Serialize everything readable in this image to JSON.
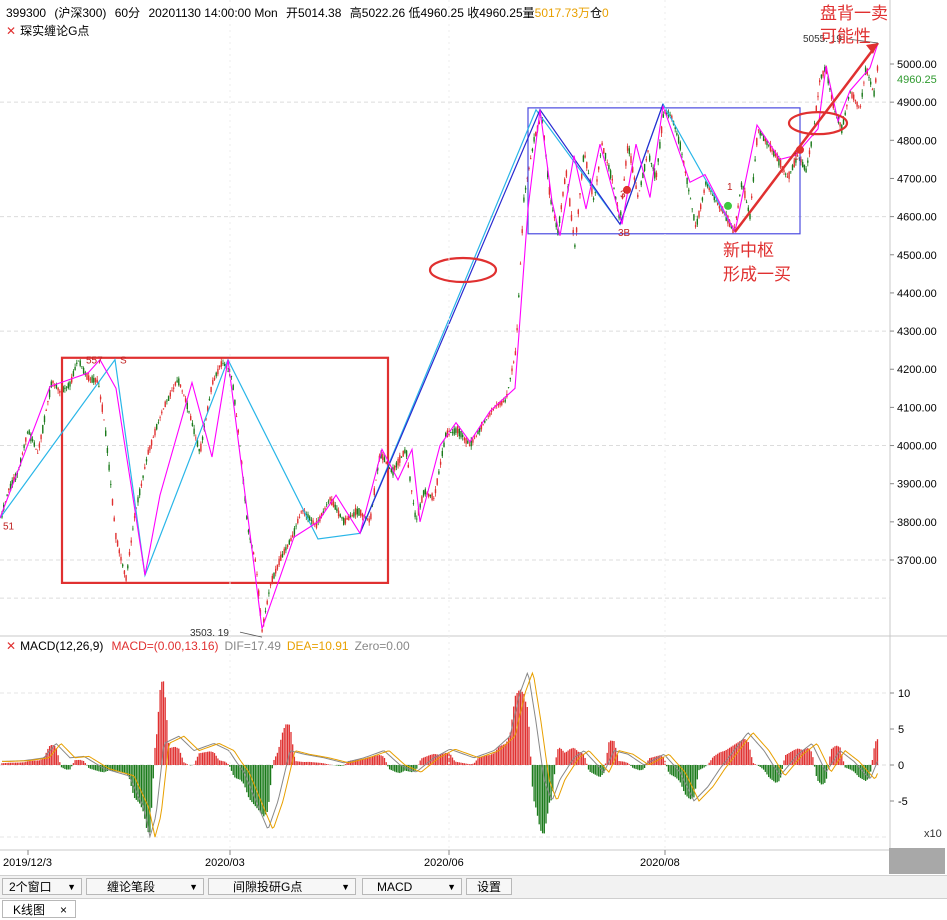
{
  "header": {
    "code": "399300",
    "name": "(沪深300)",
    "period": "60分",
    "datetime": "20201130 14:00:00 Mon",
    "open": "开5014.38",
    "high": "高5022.26",
    "low": "低4960.25",
    "close": "收4960.25",
    "volume_label": "量",
    "volume_value": "5017.73万",
    "hold_label": "仓",
    "hold_value": "0"
  },
  "indicator": {
    "name": "琛实缠论G点"
  },
  "price_axis": {
    "ticks": [
      "5000.00",
      "4900.00",
      "4800.00",
      "4700.00",
      "4600.00",
      "4500.00",
      "4400.00",
      "4300.00",
      "4200.00",
      "4100.00",
      "4000.00",
      "3900.00",
      "3800.00",
      "3700.00"
    ],
    "tick_values": [
      5000,
      4900,
      4800,
      4700,
      4600,
      4500,
      4400,
      4300,
      4200,
      4100,
      4000,
      3900,
      3800,
      3700
    ],
    "current": "4960.25"
  },
  "time_axis": {
    "labels": [
      "2019/12/3",
      "2020/03",
      "2020/06",
      "2020/08"
    ]
  },
  "macd": {
    "name": "MACD(12,26,9)",
    "macd_text": "MACD=(0.00,13.16)",
    "dif_text": "DIF=17.49",
    "dea_text": "DEA=10.91",
    "zero_text": "Zero=0.00",
    "ticks": [
      "10",
      "5",
      "0",
      "-5"
    ],
    "multiplier": "x10"
  },
  "chart_data": {
    "type": "candlestick",
    "colors": {
      "up": "#e03030",
      "down": "#1a7a1a",
      "stroke": "#ff00ff",
      "segment_light": "#29b6e8",
      "segment_dark": "#2a2ad0",
      "zhongshu": "#e03030",
      "zhongshu2": "#4b4be0",
      "annotation": "#e03030",
      "dif": "#888888",
      "dea": "#e8a000"
    },
    "price_range": [
      3540,
      5080
    ],
    "anchors": [
      [
        0,
        3800
      ],
      [
        8,
        3880
      ],
      [
        18,
        3930
      ],
      [
        28,
        4040
      ],
      [
        38,
        3980
      ],
      [
        52,
        4170
      ],
      [
        60,
        4140
      ],
      [
        70,
        4160
      ],
      [
        78,
        4225
      ],
      [
        88,
        4175
      ],
      [
        98,
        4170
      ],
      [
        105,
        4050
      ],
      [
        116,
        3760
      ],
      [
        126,
        3650
      ],
      [
        135,
        3820
      ],
      [
        148,
        3980
      ],
      [
        162,
        4090
      ],
      [
        178,
        4175
      ],
      [
        188,
        4100
      ],
      [
        200,
        3980
      ],
      [
        212,
        4160
      ],
      [
        222,
        4220
      ],
      [
        232,
        4180
      ],
      [
        240,
        4000
      ],
      [
        248,
        3780
      ],
      [
        256,
        3690
      ],
      [
        262,
        3515
      ],
      [
        270,
        3630
      ],
      [
        280,
        3700
      ],
      [
        292,
        3760
      ],
      [
        302,
        3830
      ],
      [
        316,
        3790
      ],
      [
        330,
        3860
      ],
      [
        344,
        3800
      ],
      [
        358,
        3830
      ],
      [
        370,
        3800
      ],
      [
        380,
        3980
      ],
      [
        392,
        3930
      ],
      [
        406,
        3990
      ],
      [
        416,
        3800
      ],
      [
        424,
        3880
      ],
      [
        434,
        3860
      ],
      [
        446,
        4030
      ],
      [
        458,
        4040
      ],
      [
        470,
        4000
      ],
      [
        482,
        4050
      ],
      [
        494,
        4100
      ],
      [
        506,
        4120
      ],
      [
        516,
        4250
      ],
      [
        524,
        4650
      ],
      [
        534,
        4800
      ],
      [
        542,
        4870
      ],
      [
        550,
        4650
      ],
      [
        558,
        4560
      ],
      [
        566,
        4720
      ],
      [
        575,
        4520
      ],
      [
        584,
        4770
      ],
      [
        594,
        4640
      ],
      [
        602,
        4790
      ],
      [
        612,
        4700
      ],
      [
        620,
        4590
      ],
      [
        628,
        4790
      ],
      [
        638,
        4650
      ],
      [
        648,
        4770
      ],
      [
        656,
        4700
      ],
      [
        664,
        4880
      ],
      [
        672,
        4860
      ],
      [
        680,
        4790
      ],
      [
        688,
        4680
      ],
      [
        696,
        4570
      ],
      [
        706,
        4690
      ],
      [
        716,
        4640
      ],
      [
        726,
        4600
      ],
      [
        734,
        4560
      ],
      [
        742,
        4690
      ],
      [
        750,
        4600
      ],
      [
        758,
        4830
      ],
      [
        768,
        4790
      ],
      [
        778,
        4750
      ],
      [
        788,
        4700
      ],
      [
        798,
        4760
      ],
      [
        806,
        4720
      ],
      [
        814,
        4830
      ],
      [
        820,
        4960
      ],
      [
        826,
        4990
      ],
      [
        834,
        4880
      ],
      [
        842,
        4830
      ],
      [
        850,
        4930
      ],
      [
        860,
        4880
      ],
      [
        866,
        4990
      ],
      [
        874,
        4920
      ],
      [
        878,
        5000
      ]
    ],
    "strokes": [
      [
        0,
        3810
      ],
      [
        50,
        4155
      ],
      [
        88,
        4190
      ],
      [
        100,
        4225
      ],
      [
        116,
        4150
      ],
      [
        145,
        3660
      ],
      [
        160,
        3870
      ],
      [
        192,
        4165
      ],
      [
        212,
        3970
      ],
      [
        228,
        4225
      ],
      [
        262,
        3520
      ],
      [
        294,
        3760
      ],
      [
        318,
        3800
      ],
      [
        336,
        3870
      ],
      [
        360,
        3770
      ],
      [
        382,
        3990
      ],
      [
        398,
        3910
      ],
      [
        412,
        3990
      ],
      [
        420,
        3800
      ],
      [
        440,
        4000
      ],
      [
        456,
        4060
      ],
      [
        470,
        4010
      ],
      [
        490,
        4090
      ],
      [
        515,
        4150
      ],
      [
        528,
        4620
      ],
      [
        540,
        4880
      ],
      [
        552,
        4640
      ],
      [
        560,
        4550
      ],
      [
        574,
        4760
      ],
      [
        586,
        4620
      ],
      [
        600,
        4790
      ],
      [
        622,
        4580
      ],
      [
        636,
        4790
      ],
      [
        650,
        4650
      ],
      [
        663,
        4890
      ],
      [
        690,
        4690
      ],
      [
        705,
        4710
      ],
      [
        735,
        4560
      ],
      [
        757,
        4840
      ],
      [
        780,
        4750
      ],
      [
        795,
        4760
      ],
      [
        818,
        4830
      ],
      [
        826,
        4995
      ],
      [
        838,
        4850
      ],
      [
        850,
        4930
      ],
      [
        870,
        4990
      ],
      [
        878,
        5055
      ]
    ],
    "segments_light": [
      [
        0,
        3810
      ],
      [
        115,
        4225
      ],
      [
        145,
        3660
      ],
      [
        228,
        4225
      ],
      [
        318,
        3755
      ],
      [
        360,
        3770
      ],
      [
        536,
        4880
      ],
      [
        620,
        4580
      ],
      [
        663,
        4895
      ],
      [
        735,
        4560
      ]
    ],
    "segments_dark": [
      [
        360,
        3770
      ],
      [
        540,
        4880
      ],
      [
        620,
        4580
      ],
      [
        663,
        4895
      ]
    ],
    "zhongshu_boxes": [
      {
        "x1": 62,
        "x2": 388,
        "top": 4230,
        "bottom": 3640
      },
      {
        "x1": 528,
        "x2": 800,
        "top": 4885,
        "bottom": 4555,
        "dark": true
      }
    ],
    "labels": [
      {
        "text": "557",
        "x": 86,
        "v": 4225
      },
      {
        "text": "S",
        "x": 120,
        "v": 4225
      },
      {
        "text": "51",
        "x": 3,
        "v": 3790
      },
      {
        "text": "3B",
        "x": 618,
        "v": 4560
      },
      {
        "text": "3",
        "x": 620,
        "v": 4660
      },
      {
        "text": "1",
        "x": 727,
        "v": 4680
      },
      {
        "text": "1",
        "x": 793,
        "v": 4760
      }
    ],
    "markers": [
      {
        "x": 627,
        "v": 4670,
        "color": "#e03030"
      },
      {
        "x": 728,
        "v": 4628,
        "color": "#3ec83e"
      },
      {
        "x": 800,
        "v": 4775,
        "color": "#e03030"
      }
    ],
    "low_label": {
      "text": "3503. 19",
      "x": 262,
      "v": 3503
    },
    "high_label": {
      "text": "5055. 19",
      "x": 878,
      "v": 5055
    },
    "trend_line": [
      [
        735,
        4560
      ],
      [
        878,
        5055
      ]
    ],
    "ellipses": [
      {
        "cx": 463,
        "v": 4460,
        "rx": 33,
        "ry": 12
      },
      {
        "cx": 818,
        "v": 4845,
        "rx": 29,
        "ry": 11
      }
    ],
    "macd_range": [
      -10,
      14
    ],
    "macd_anchors": [
      [
        0,
        0.5
      ],
      [
        20,
        0.6
      ],
      [
        40,
        1
      ],
      [
        52,
        3
      ],
      [
        66,
        1
      ],
      [
        80,
        1.2
      ],
      [
        100,
        -0.5
      ],
      [
        125,
        -1.5
      ],
      [
        140,
        -6
      ],
      [
        146,
        -10
      ],
      [
        152,
        -7
      ],
      [
        160,
        3
      ],
      [
        175,
        4
      ],
      [
        190,
        2
      ],
      [
        210,
        3
      ],
      [
        225,
        2
      ],
      [
        232,
        0.5
      ],
      [
        240,
        -1
      ],
      [
        252,
        -5
      ],
      [
        264,
        -9
      ],
      [
        274,
        -5
      ],
      [
        286,
        2
      ],
      [
        300,
        1.5
      ],
      [
        320,
        1
      ],
      [
        340,
        0.3
      ],
      [
        360,
        1
      ],
      [
        380,
        2
      ],
      [
        396,
        0
      ],
      [
        412,
        -1
      ],
      [
        430,
        1
      ],
      [
        446,
        2.2
      ],
      [
        470,
        1
      ],
      [
        490,
        2
      ],
      [
        506,
        4
      ],
      [
        516,
        10
      ],
      [
        524,
        13
      ],
      [
        532,
        6
      ],
      [
        540,
        -2
      ],
      [
        548,
        -5
      ],
      [
        556,
        -2
      ],
      [
        570,
        1
      ],
      [
        580,
        2
      ],
      [
        600,
        -1
      ],
      [
        610,
        2
      ],
      [
        624,
        1.5
      ],
      [
        640,
        0
      ],
      [
        660,
        1.5
      ],
      [
        676,
        -1
      ],
      [
        690,
        -5
      ],
      [
        704,
        -3
      ],
      [
        716,
        -0.5
      ],
      [
        730,
        2
      ],
      [
        744,
        4.5
      ],
      [
        760,
        2
      ],
      [
        776,
        -1.5
      ],
      [
        794,
        1.5
      ],
      [
        808,
        3
      ],
      [
        822,
        -1
      ],
      [
        836,
        2
      ],
      [
        850,
        0.5
      ],
      [
        866,
        -2
      ],
      [
        878,
        2
      ]
    ]
  },
  "annotations": {
    "new_center": "新中枢",
    "first_buy": "形成一买",
    "pan_bei": "盘背一卖",
    "possible": "可能性"
  },
  "toolbar": {
    "window_count": "2个窗口",
    "bi_segment": "缠论笔段",
    "gpoint": "间隙投研G点",
    "macd": "MACD",
    "settings": "设置"
  },
  "tabs": {
    "kline": "K线图",
    "close_glyph": "×"
  }
}
